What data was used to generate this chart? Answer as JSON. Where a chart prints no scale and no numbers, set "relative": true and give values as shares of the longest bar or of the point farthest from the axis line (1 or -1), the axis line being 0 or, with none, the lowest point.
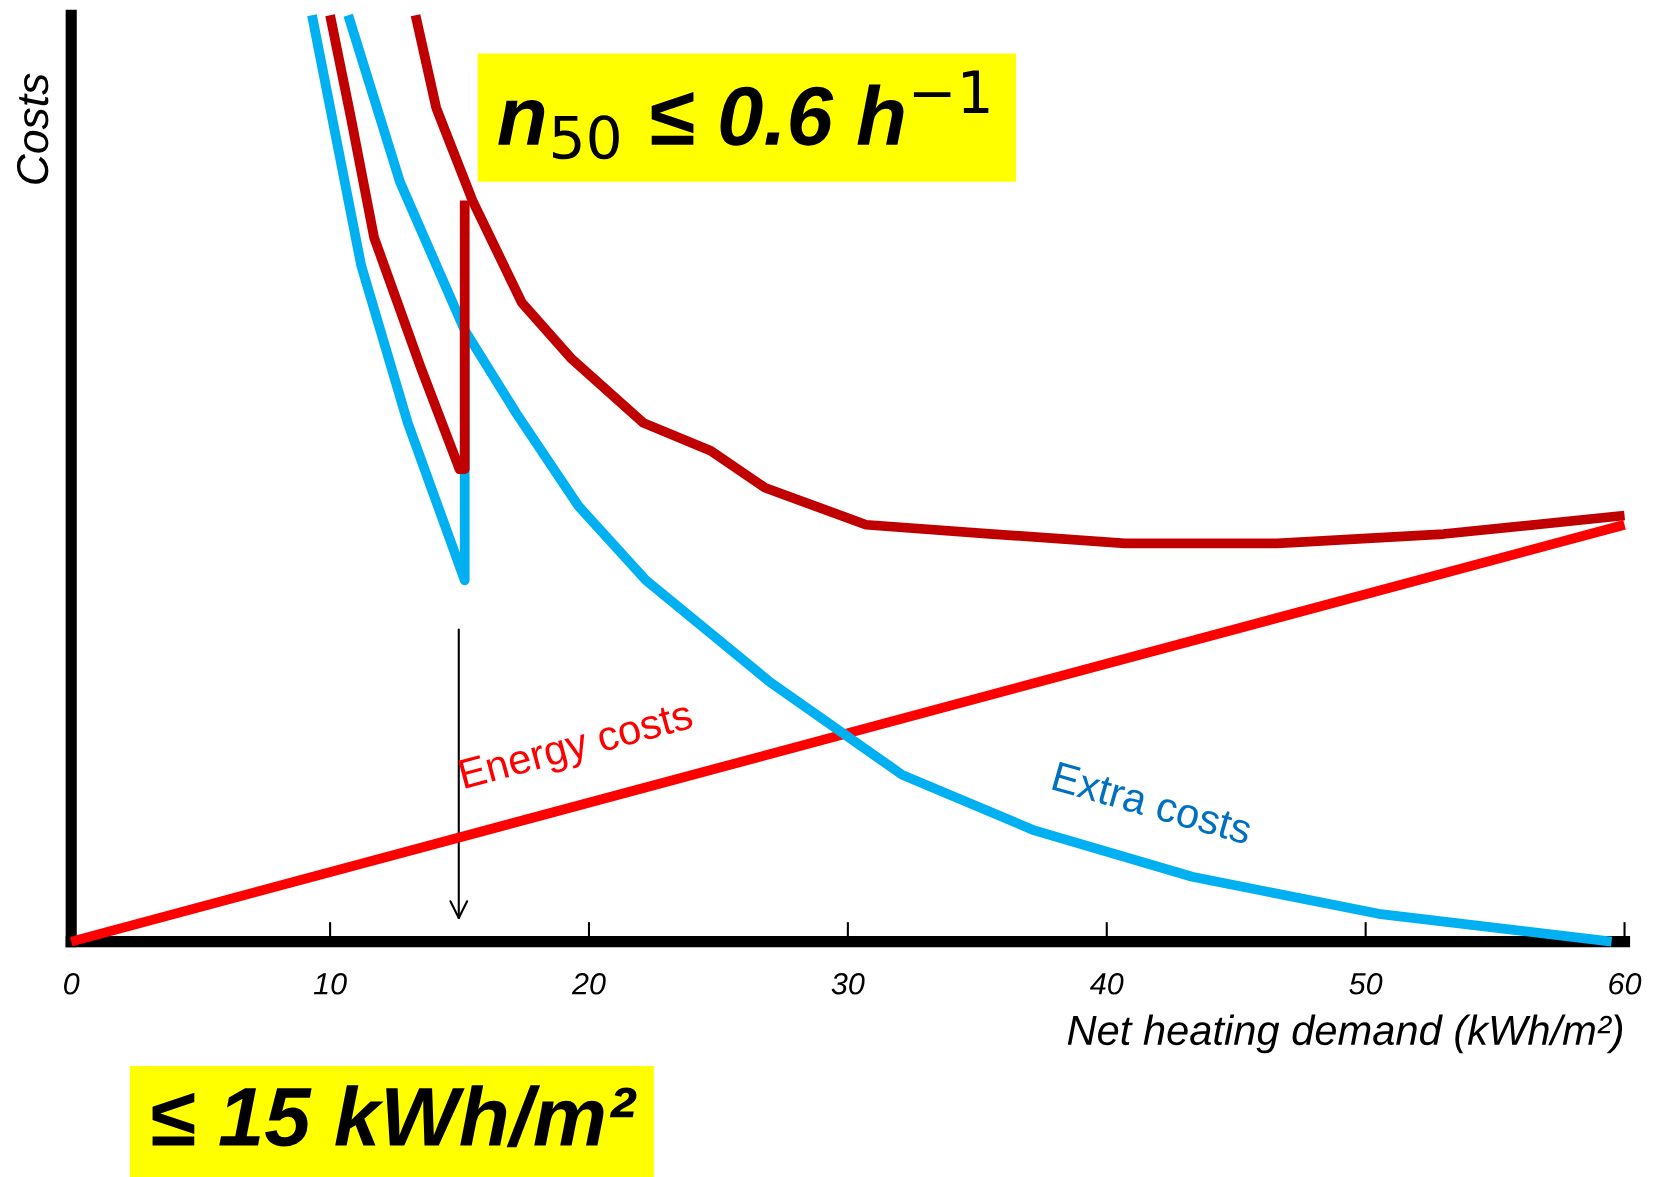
{
  "chart_data": {
    "type": "line",
    "relative": true,
    "xlabel": "Net heating demand (kWh/m²)",
    "ylabel": "Costs",
    "xlim": [
      0,
      60
    ],
    "xticks": [
      0,
      10,
      20,
      30,
      40,
      50,
      60
    ],
    "grid": false,
    "legend": false,
    "marker": "none",
    "line_style": "solid",
    "series": [
      {
        "name": "Energy costs",
        "color": "#ff0000",
        "x": [
          0,
          60
        ],
        "values": [
          0,
          0.45
        ]
      },
      {
        "name": "Extra costs",
        "color": "#00b0f0",
        "x": [
          10.7,
          12.7,
          15.2,
          17.2,
          19.6,
          22.2,
          27.0,
          32.1,
          37.2,
          43.3,
          50.5,
          59.5
        ],
        "values": [
          1.0,
          0.82,
          0.66,
          0.57,
          0.47,
          0.39,
          0.28,
          0.18,
          0.12,
          0.07,
          0.03,
          0
        ]
      },
      {
        "color": "#00b0f0",
        "x": [
          9.3,
          11.2,
          13.0,
          15.2,
          15.2
        ],
        "values": [
          1.0,
          0.73,
          0.56,
          0.39,
          0.66
        ]
      },
      {
        "color": "#c00000",
        "x": [
          13.3,
          14.1,
          15.5,
          17.4,
          19.3,
          22.1,
          24.7,
          26.8,
          30.7,
          35.6,
          40.7,
          46.6,
          53.0,
          60
        ],
        "values": [
          1.0,
          0.9,
          0.8,
          0.69,
          0.63,
          0.56,
          0.53,
          0.49,
          0.45,
          0.44,
          0.43,
          0.43,
          0.44,
          0.46
        ]
      },
      {
        "color": "#c00000",
        "x": [
          10.0,
          10.8,
          11.7,
          13.5,
          15.0,
          15.2,
          15.2
        ],
        "values": [
          1.0,
          0.89,
          0.76,
          0.62,
          0.51,
          0.51,
          0.8
        ]
      }
    ],
    "annotations": [
      "n$_{50}$ ≤ 0.6 h$^{−1}$",
      "≤ 15 kWh/m²"
    ]
  }
}
